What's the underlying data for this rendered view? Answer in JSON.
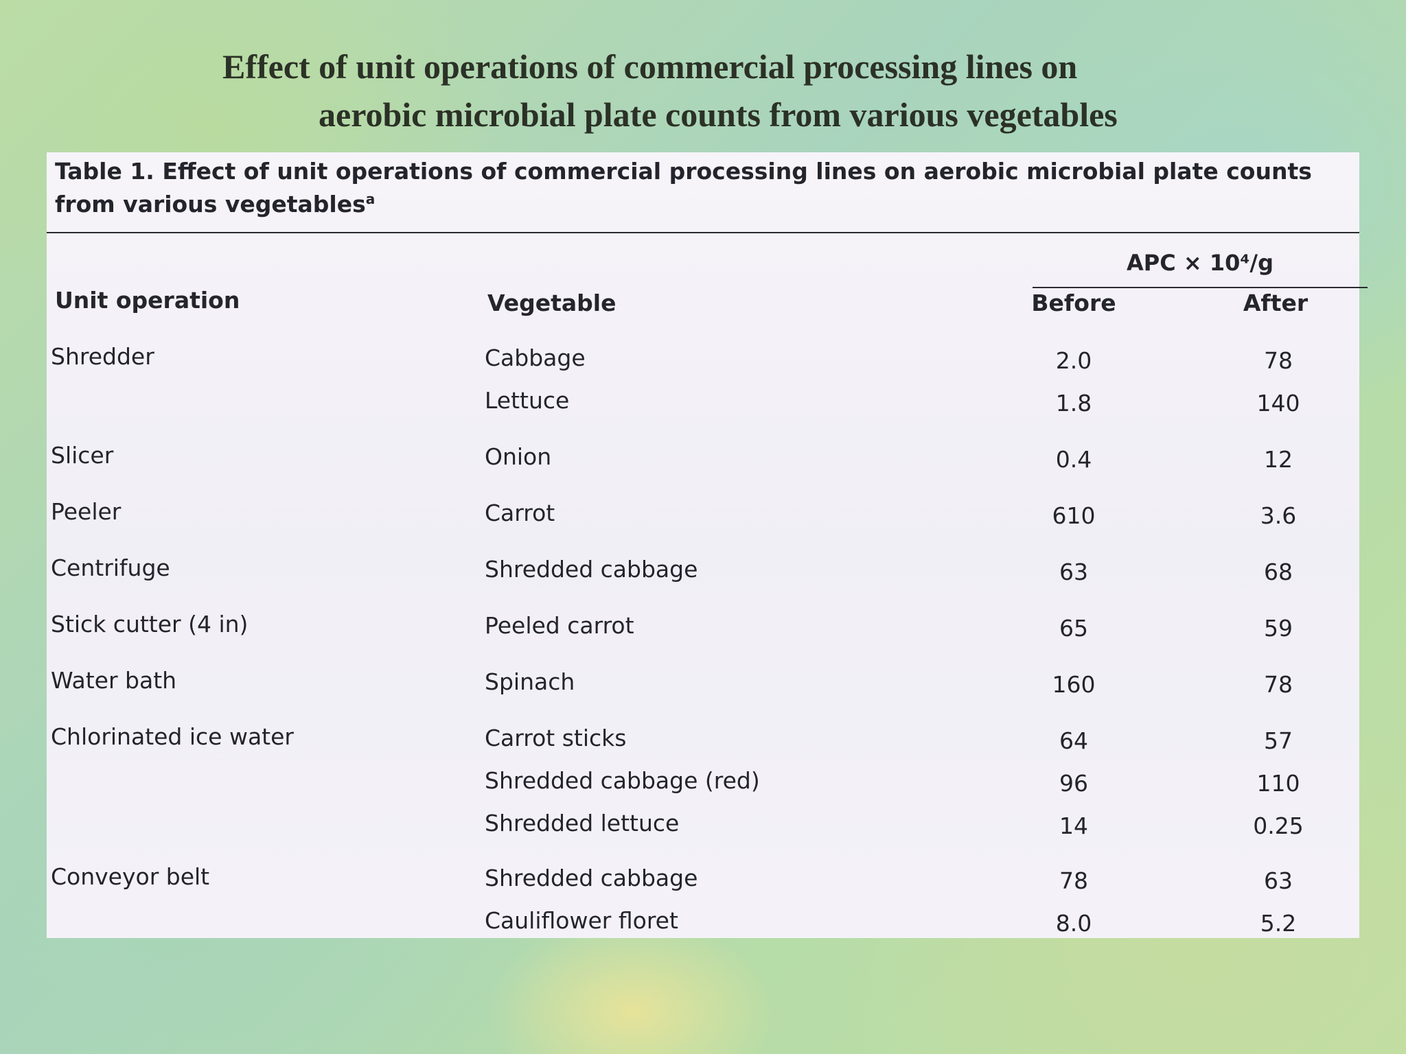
{
  "slide": {
    "title_line1": "Effect of unit operations of commercial processing lines on",
    "title_line2": "aerobic microbial plate counts from various vegetables"
  },
  "table": {
    "caption": "Table 1. Effect of unit operations of commercial processing lines on aerobic microbial plate counts from various vegetables",
    "caption_sup": "a",
    "group_header": "APC × 10⁴/g",
    "columns": {
      "unit_operation": "Unit operation",
      "vegetable": "Vegetable",
      "before": "Before",
      "after": "After"
    },
    "rows": [
      {
        "operation": "Shredder",
        "vegetable": "Cabbage",
        "before": "2.0",
        "after": "78"
      },
      {
        "operation": "",
        "vegetable": "Lettuce",
        "before": "1.8",
        "after": "140"
      },
      {
        "operation": "Slicer",
        "vegetable": "Onion",
        "before": "0.4",
        "after": "12"
      },
      {
        "operation": "Peeler",
        "vegetable": "Carrot",
        "before": "610",
        "after": "3.6"
      },
      {
        "operation": "Centrifuge",
        "vegetable": "Shredded cabbage",
        "before": "63",
        "after": "68"
      },
      {
        "operation": "Stick cutter (4 in)",
        "vegetable": "Peeled carrot",
        "before": "65",
        "after": "59"
      },
      {
        "operation": "Water bath",
        "vegetable": "Spinach",
        "before": "160",
        "after": "78"
      },
      {
        "operation": "Chlorinated ice water",
        "vegetable": "Carrot sticks",
        "before": "64",
        "after": "57"
      },
      {
        "operation": "",
        "vegetable": "Shredded cabbage (red)",
        "before": "96",
        "after": "110"
      },
      {
        "operation": "",
        "vegetable": "Shredded lettuce",
        "before": "14",
        "after": "0.25"
      },
      {
        "operation": "Conveyor belt",
        "vegetable": "Shredded cabbage",
        "before": "78",
        "after": "63"
      },
      {
        "operation": "",
        "vegetable": "Cauliflower floret",
        "before": "8.0",
        "after": "5.2"
      }
    ]
  }
}
